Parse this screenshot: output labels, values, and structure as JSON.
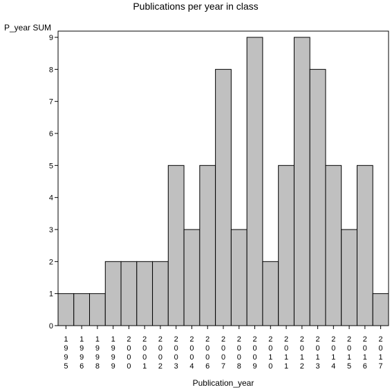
{
  "chart_data": {
    "type": "bar",
    "title": "Publications per year in class",
    "xlabel": "Publication_year",
    "ylabel": "P_year SUM",
    "ylim": [
      0,
      9
    ],
    "yticks": [
      0,
      1,
      2,
      3,
      4,
      5,
      6,
      7,
      8,
      9
    ],
    "categories": [
      "1995",
      "1996",
      "1998",
      "1999",
      "2000",
      "2001",
      "2002",
      "2003",
      "2004",
      "2006",
      "2007",
      "2008",
      "2009",
      "2010",
      "2011",
      "2012",
      "2013",
      "2014",
      "2015",
      "2016",
      "2017"
    ],
    "values": [
      1,
      1,
      1,
      2,
      2,
      2,
      2,
      5,
      3,
      5,
      8,
      3,
      9,
      2,
      5,
      9,
      8,
      5,
      3,
      5,
      1
    ],
    "grid": false,
    "legend": "none",
    "colors": {
      "bar_fill": "#c0c0c0",
      "bar_stroke": "#000000"
    }
  }
}
